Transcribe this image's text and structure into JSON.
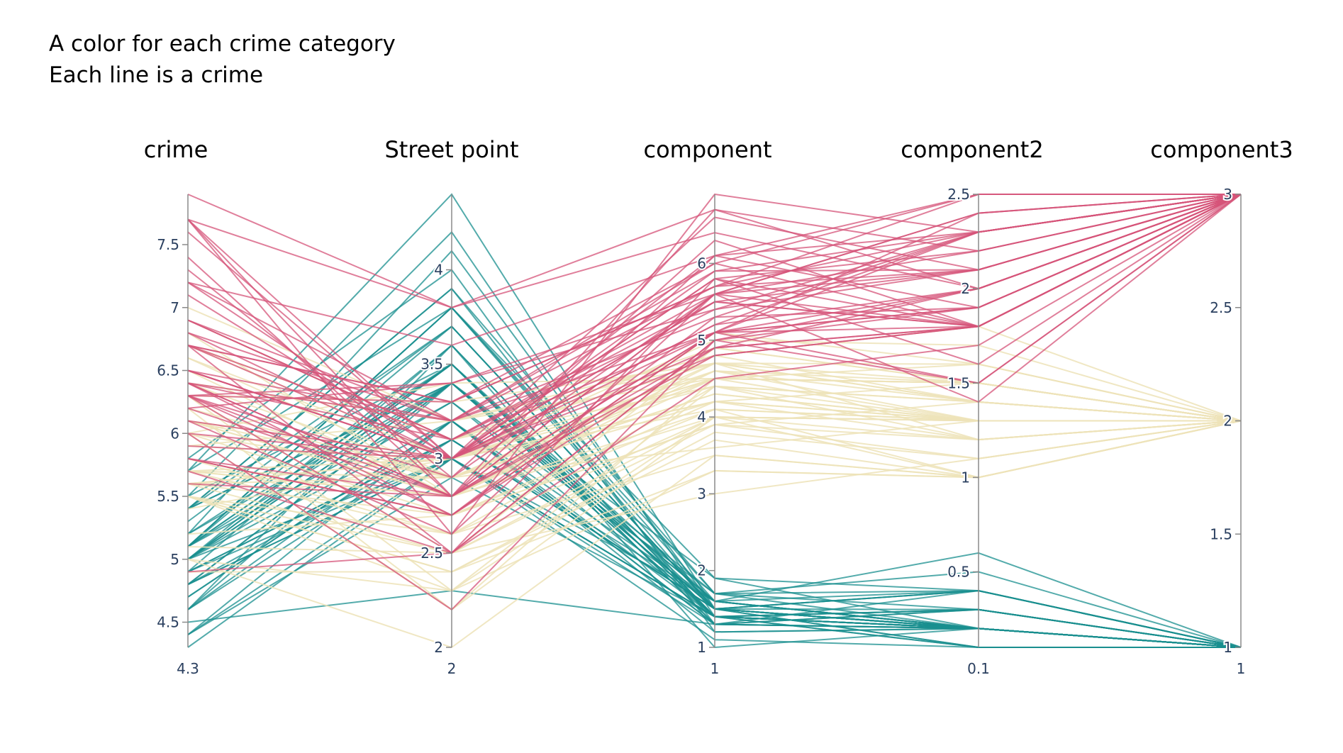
{
  "notes": [
    "A color for each crime category",
    "Each line is a crime"
  ],
  "colors": {
    "teal": "#1a8f8f",
    "cream": "#ede3b8",
    "pink": "#d6547a",
    "axis": "#8a8a8a",
    "text": "#2a3f5f"
  },
  "chart_data": {
    "type": "parallel_coordinates",
    "title": "",
    "legend": "none",
    "dimensions": [
      {
        "label": "crime",
        "range": [
          4.3,
          7.9
        ],
        "ticks": [
          4.5,
          5,
          5.5,
          6,
          6.5,
          7,
          7.5
        ],
        "tick_labels": [
          "4.5",
          "5",
          "5.5",
          "6",
          "6.5",
          "7",
          "7.5"
        ],
        "min_label": "4.3"
      },
      {
        "label": "Street point",
        "range": [
          2,
          4.4
        ],
        "ticks": [
          2,
          2.5,
          3,
          3.5,
          4
        ],
        "tick_labels": [
          "2",
          "2.5",
          "3",
          "3.5",
          "4"
        ],
        "min_label": "2"
      },
      {
        "label": "component",
        "range": [
          1,
          6.9
        ],
        "ticks": [
          1,
          2,
          3,
          4,
          5,
          6
        ],
        "tick_labels": [
          "1",
          "2",
          "3",
          "4",
          "5",
          "6"
        ],
        "min_label": "1"
      },
      {
        "label": "component2",
        "range": [
          0.1,
          2.5
        ],
        "ticks": [
          0.5,
          1,
          1.5,
          2,
          2.5
        ],
        "tick_labels": [
          "0.5",
          "1",
          "1.5",
          "2",
          "2.5"
        ],
        "min_label": "0.1"
      },
      {
        "label": "component3",
        "range": [
          1,
          3
        ],
        "ticks": [
          1,
          1.5,
          2,
          2.5,
          3
        ],
        "tick_labels": [
          "1",
          "1.5",
          "2",
          "2.5",
          "3"
        ],
        "min_label": "1"
      }
    ],
    "categories": [
      {
        "color_key": "teal"
      },
      {
        "color_key": "cream"
      },
      {
        "color_key": "pink"
      }
    ],
    "lines": [
      [
        5.1,
        3.5,
        1.4,
        0.2,
        1
      ],
      [
        4.9,
        3.0,
        1.4,
        0.2,
        1
      ],
      [
        4.7,
        3.2,
        1.3,
        0.2,
        1
      ],
      [
        4.6,
        3.1,
        1.5,
        0.2,
        1
      ],
      [
        5.0,
        3.6,
        1.4,
        0.2,
        1
      ],
      [
        5.4,
        3.9,
        1.7,
        0.4,
        1
      ],
      [
        4.6,
        3.4,
        1.4,
        0.3,
        1
      ],
      [
        5.0,
        3.4,
        1.5,
        0.2,
        1
      ],
      [
        4.4,
        2.9,
        1.4,
        0.2,
        1
      ],
      [
        4.9,
        3.1,
        1.5,
        0.1,
        1
      ],
      [
        5.4,
        3.7,
        1.5,
        0.2,
        1
      ],
      [
        4.8,
        3.4,
        1.6,
        0.2,
        1
      ],
      [
        4.8,
        3.0,
        1.4,
        0.1,
        1
      ],
      [
        4.3,
        3.0,
        1.1,
        0.1,
        1
      ],
      [
        5.8,
        4.0,
        1.2,
        0.2,
        1
      ],
      [
        5.7,
        4.4,
        1.5,
        0.4,
        1
      ],
      [
        5.4,
        3.9,
        1.3,
        0.4,
        1
      ],
      [
        5.1,
        3.5,
        1.4,
        0.3,
        1
      ],
      [
        5.7,
        3.8,
        1.7,
        0.3,
        1
      ],
      [
        5.1,
        3.8,
        1.5,
        0.3,
        1
      ],
      [
        5.4,
        3.4,
        1.7,
        0.2,
        1
      ],
      [
        5.1,
        3.7,
        1.5,
        0.4,
        1
      ],
      [
        4.6,
        3.6,
        1.0,
        0.2,
        1
      ],
      [
        5.1,
        3.3,
        1.7,
        0.5,
        1
      ],
      [
        4.8,
        3.4,
        1.9,
        0.2,
        1
      ],
      [
        5.0,
        3.0,
        1.6,
        0.2,
        1
      ],
      [
        5.0,
        3.4,
        1.6,
        0.4,
        1
      ],
      [
        5.2,
        3.5,
        1.5,
        0.2,
        1
      ],
      [
        5.2,
        3.4,
        1.4,
        0.2,
        1
      ],
      [
        4.7,
        3.2,
        1.6,
        0.2,
        1
      ],
      [
        4.8,
        3.1,
        1.6,
        0.2,
        1
      ],
      [
        5.4,
        3.4,
        1.5,
        0.4,
        1
      ],
      [
        5.2,
        4.1,
        1.5,
        0.1,
        1
      ],
      [
        5.5,
        4.2,
        1.4,
        0.2,
        1
      ],
      [
        4.9,
        3.1,
        1.5,
        0.2,
        1
      ],
      [
        5.0,
        3.2,
        1.2,
        0.2,
        1
      ],
      [
        5.5,
        3.5,
        1.3,
        0.2,
        1
      ],
      [
        4.9,
        3.6,
        1.4,
        0.1,
        1
      ],
      [
        4.4,
        3.0,
        1.3,
        0.2,
        1
      ],
      [
        5.1,
        3.4,
        1.5,
        0.2,
        1
      ],
      [
        5.0,
        3.5,
        1.3,
        0.3,
        1
      ],
      [
        4.5,
        2.3,
        1.3,
        0.3,
        1
      ],
      [
        4.4,
        3.2,
        1.3,
        0.2,
        1
      ],
      [
        5.0,
        3.5,
        1.6,
        0.6,
        1
      ],
      [
        5.1,
        3.8,
        1.9,
        0.4,
        1
      ],
      [
        4.8,
        3.0,
        1.4,
        0.3,
        1
      ],
      [
        5.1,
        3.8,
        1.6,
        0.2,
        1
      ],
      [
        4.6,
        3.2,
        1.4,
        0.2,
        1
      ],
      [
        5.3,
        3.7,
        1.5,
        0.2,
        1
      ],
      [
        5.0,
        3.3,
        1.4,
        0.2,
        1
      ],
      [
        7.0,
        3.2,
        4.7,
        1.4,
        2
      ],
      [
        6.4,
        3.2,
        4.5,
        1.5,
        2
      ],
      [
        6.9,
        3.1,
        4.9,
        1.5,
        2
      ],
      [
        5.5,
        2.3,
        4.0,
        1.3,
        2
      ],
      [
        6.5,
        2.8,
        4.6,
        1.5,
        2
      ],
      [
        5.7,
        2.8,
        4.5,
        1.3,
        2
      ],
      [
        6.3,
        3.3,
        4.7,
        1.6,
        2
      ],
      [
        4.9,
        2.4,
        3.3,
        1.0,
        2
      ],
      [
        6.6,
        2.9,
        4.6,
        1.3,
        2
      ],
      [
        5.2,
        2.7,
        3.9,
        1.4,
        2
      ],
      [
        5.0,
        2.0,
        3.5,
        1.0,
        2
      ],
      [
        5.9,
        3.0,
        4.2,
        1.5,
        2
      ],
      [
        6.0,
        2.2,
        4.0,
        1.0,
        2
      ],
      [
        6.1,
        2.9,
        4.7,
        1.4,
        2
      ],
      [
        5.6,
        2.9,
        3.6,
        1.3,
        2
      ],
      [
        6.7,
        3.1,
        4.4,
        1.4,
        2
      ],
      [
        5.6,
        3.0,
        4.5,
        1.5,
        2
      ],
      [
        5.8,
        2.7,
        4.1,
        1.0,
        2
      ],
      [
        6.2,
        2.2,
        4.5,
        1.5,
        2
      ],
      [
        5.6,
        2.5,
        3.9,
        1.1,
        2
      ],
      [
        5.9,
        3.2,
        4.8,
        1.8,
        2
      ],
      [
        6.1,
        2.8,
        4.0,
        1.3,
        2
      ],
      [
        6.3,
        2.5,
        4.9,
        1.5,
        2
      ],
      [
        6.1,
        2.8,
        4.7,
        1.2,
        2
      ],
      [
        6.4,
        2.9,
        4.3,
        1.3,
        2
      ],
      [
        6.6,
        3.0,
        4.4,
        1.4,
        2
      ],
      [
        6.8,
        2.8,
        4.8,
        1.4,
        2
      ],
      [
        6.7,
        3.0,
        5.0,
        1.7,
        2
      ],
      [
        6.0,
        2.9,
        4.5,
        1.5,
        2
      ],
      [
        5.7,
        2.6,
        3.5,
        1.0,
        2
      ],
      [
        5.5,
        2.4,
        3.8,
        1.1,
        2
      ],
      [
        5.5,
        2.4,
        3.7,
        1.0,
        2
      ],
      [
        5.8,
        2.7,
        3.9,
        1.2,
        2
      ],
      [
        6.0,
        2.7,
        5.1,
        1.6,
        2
      ],
      [
        5.4,
        3.0,
        4.5,
        1.5,
        2
      ],
      [
        6.0,
        3.4,
        4.5,
        1.6,
        2
      ],
      [
        6.7,
        3.1,
        4.7,
        1.5,
        2
      ],
      [
        6.3,
        2.3,
        4.4,
        1.3,
        2
      ],
      [
        5.6,
        3.0,
        4.1,
        1.3,
        2
      ],
      [
        5.5,
        2.5,
        4.0,
        1.3,
        2
      ],
      [
        5.5,
        2.6,
        4.4,
        1.2,
        2
      ],
      [
        6.1,
        3.0,
        4.6,
        1.4,
        2
      ],
      [
        5.8,
        2.6,
        4.0,
        1.2,
        2
      ],
      [
        5.0,
        2.3,
        3.3,
        1.0,
        2
      ],
      [
        5.6,
        2.7,
        4.2,
        1.3,
        2
      ],
      [
        5.7,
        3.0,
        4.2,
        1.2,
        2
      ],
      [
        5.7,
        2.9,
        4.2,
        1.3,
        2
      ],
      [
        6.2,
        2.9,
        4.3,
        1.3,
        2
      ],
      [
        5.1,
        2.5,
        3.0,
        1.1,
        2
      ],
      [
        5.7,
        2.8,
        4.1,
        1.3,
        2
      ],
      [
        6.3,
        3.3,
        6.0,
        2.5,
        3
      ],
      [
        5.8,
        2.7,
        5.1,
        1.9,
        3
      ],
      [
        7.1,
        3.0,
        5.9,
        2.1,
        3
      ],
      [
        6.3,
        2.9,
        5.6,
        1.8,
        3
      ],
      [
        6.5,
        3.0,
        5.8,
        2.2,
        3
      ],
      [
        7.6,
        3.0,
        6.6,
        2.1,
        3
      ],
      [
        4.9,
        2.5,
        4.5,
        1.7,
        3
      ],
      [
        7.3,
        2.9,
        6.3,
        1.8,
        3
      ],
      [
        6.7,
        2.5,
        5.8,
        1.8,
        3
      ],
      [
        7.2,
        3.6,
        6.1,
        2.5,
        3
      ],
      [
        6.5,
        3.2,
        5.1,
        2.0,
        3
      ],
      [
        6.4,
        2.7,
        5.3,
        1.9,
        3
      ],
      [
        6.8,
        3.0,
        5.5,
        2.1,
        3
      ],
      [
        5.7,
        2.5,
        5.0,
        2.0,
        3
      ],
      [
        5.8,
        2.8,
        5.1,
        2.4,
        3
      ],
      [
        6.4,
        3.2,
        5.3,
        2.3,
        3
      ],
      [
        6.5,
        3.0,
        5.5,
        1.8,
        3
      ],
      [
        7.7,
        3.8,
        6.7,
        2.2,
        3
      ],
      [
        7.7,
        2.6,
        6.9,
        2.3,
        3
      ],
      [
        6.0,
        2.2,
        5.0,
        1.5,
        3
      ],
      [
        6.9,
        3.2,
        5.7,
        2.3,
        3
      ],
      [
        5.6,
        2.8,
        4.9,
        2.0,
        3
      ],
      [
        7.7,
        2.8,
        6.7,
        2.0,
        3
      ],
      [
        6.3,
        2.7,
        4.9,
        1.8,
        3
      ],
      [
        6.7,
        3.3,
        5.7,
        2.1,
        3
      ],
      [
        7.2,
        3.2,
        6.0,
        1.8,
        3
      ],
      [
        6.2,
        2.8,
        4.8,
        1.8,
        3
      ],
      [
        6.1,
        3.0,
        4.9,
        1.8,
        3
      ],
      [
        6.4,
        2.8,
        5.6,
        2.1,
        3
      ],
      [
        7.2,
        3.0,
        5.8,
        1.6,
        3
      ],
      [
        7.4,
        2.8,
        6.1,
        1.9,
        3
      ],
      [
        7.9,
        3.8,
        6.4,
        2.0,
        3
      ],
      [
        6.4,
        2.8,
        5.6,
        2.2,
        3
      ],
      [
        6.3,
        2.8,
        5.1,
        1.5,
        3
      ],
      [
        6.1,
        2.6,
        5.6,
        1.4,
        3
      ],
      [
        7.7,
        3.0,
        6.1,
        2.3,
        3
      ],
      [
        6.3,
        3.4,
        5.6,
        2.4,
        3
      ],
      [
        6.4,
        3.1,
        5.5,
        1.8,
        3
      ],
      [
        6.0,
        3.0,
        4.8,
        1.8,
        3
      ],
      [
        6.9,
        3.1,
        5.4,
        2.1,
        3
      ],
      [
        6.7,
        3.1,
        5.6,
        2.4,
        3
      ],
      [
        6.9,
        3.1,
        5.1,
        2.3,
        3
      ],
      [
        5.8,
        2.7,
        5.1,
        1.9,
        3
      ],
      [
        6.8,
        3.2,
        5.9,
        2.3,
        3
      ],
      [
        6.7,
        3.3,
        5.7,
        2.5,
        3
      ],
      [
        6.7,
        3.0,
        5.2,
        2.3,
        3
      ],
      [
        6.3,
        2.5,
        5.0,
        1.9,
        3
      ],
      [
        6.5,
        3.0,
        5.2,
        2.0,
        3
      ],
      [
        6.2,
        3.4,
        5.4,
        2.3,
        3
      ],
      [
        5.9,
        3.0,
        5.1,
        1.8,
        3
      ]
    ]
  }
}
